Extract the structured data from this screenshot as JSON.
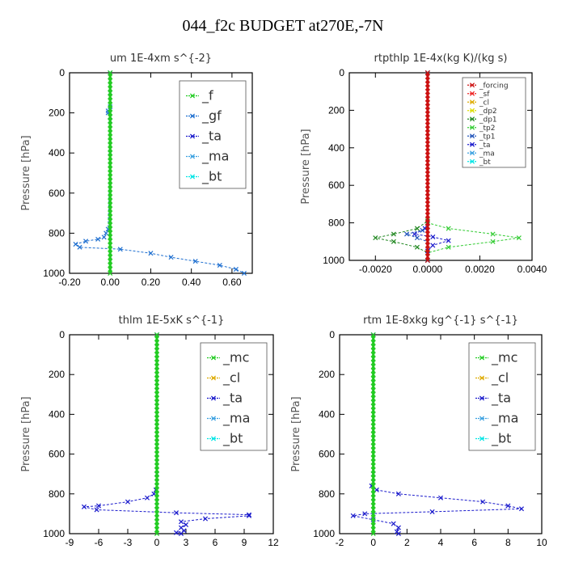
{
  "figure_title": "044_f2c  BUDGET at270E,-7N",
  "colors": {
    "f": "#22cc22",
    "gf": "#1e6fd0",
    "ta": "#1a1acc",
    "ma": "#3aa0e0",
    "bt": "#00e5e5",
    "forcing": "#cc1111",
    "sf": "#ee2222",
    "cl": "#ddaa00",
    "dp2": "#dddd00",
    "dp1": "#228822",
    "tp2": "#33cc33",
    "tp1": "#2255bb",
    "mc": "#22cc22",
    "total_overlay": "#22cc22"
  },
  "chart_data": [
    {
      "type": "line",
      "title": "um  1E-4xm s^{-2}",
      "ylabel": "Pressure [hPa]",
      "xlim": [
        -0.2,
        0.7
      ],
      "ylim": [
        1000,
        0
      ],
      "x_ticks": [
        "-0.20",
        "0.00",
        "0.20",
        "0.40",
        "0.60"
      ],
      "x_tick_values": [
        -0.2,
        0.0,
        0.2,
        0.4,
        0.6
      ],
      "y_ticks": [
        "0",
        "200",
        "400",
        "600",
        "800",
        "1000"
      ],
      "y_tick_values": [
        0,
        200,
        400,
        600,
        800,
        1000
      ],
      "legend": [
        "_f",
        "_gf",
        "_ta",
        "_ma",
        "_bt"
      ],
      "legend_size": "big",
      "legend_placement": "top-right",
      "series": [
        {
          "name": "_gf",
          "color_key": "gf",
          "x": [
            0.0,
            0.0,
            0.0,
            0.0,
            -0.01,
            -0.01,
            0.0,
            0.0,
            0.0,
            -0.01,
            -0.02,
            -0.03,
            -0.06,
            -0.12,
            -0.17,
            -0.15,
            0.05,
            0.2,
            0.3,
            0.42,
            0.54,
            0.62,
            0.66
          ],
          "y": [
            0,
            100,
            170,
            180,
            190,
            200,
            220,
            240,
            400,
            780,
            800,
            820,
            830,
            840,
            855,
            870,
            880,
            900,
            920,
            940,
            960,
            980,
            1000
          ]
        },
        {
          "name": "_f",
          "color_key": "f",
          "x": [
            0.0,
            0.0,
            0.0,
            0.0,
            0.0,
            0.0
          ],
          "y": [
            0,
            200,
            400,
            600,
            800,
            1000
          ]
        }
      ]
    },
    {
      "type": "line",
      "title": "rtpthlp  1E-4x(kg K)/(kg s)",
      "ylabel": "Pressure [hPa]",
      "xlim": [
        -0.003,
        0.004
      ],
      "ylim": [
        1000,
        0
      ],
      "x_ticks": [
        "-0.0020",
        "0.0000",
        "0.0020",
        "0.0040"
      ],
      "x_tick_values": [
        -0.002,
        0.0,
        0.002,
        0.004
      ],
      "y_ticks": [
        "0",
        "200",
        "400",
        "600",
        "800",
        "1000"
      ],
      "y_tick_values": [
        0,
        200,
        400,
        600,
        800,
        1000
      ],
      "legend": [
        "_forcing",
        "_sf",
        "_cl",
        "_dp2",
        "_dp1",
        "_tp2",
        "_tp1",
        "_ta",
        "_ma",
        "_bt"
      ],
      "legend_size": "small",
      "legend_placement": "top-right",
      "series": [
        {
          "name": "_tp2",
          "color_key": "tp2",
          "x": [
            0.0,
            0.0,
            0.0,
            0.0008,
            0.0025,
            0.0035,
            0.0025,
            0.0008,
            0.0,
            0.0
          ],
          "y": [
            0,
            780,
            800,
            830,
            860,
            880,
            900,
            930,
            960,
            1000
          ]
        },
        {
          "name": "_dp1",
          "color_key": "dp1",
          "x": [
            0.0,
            0.0,
            -0.0004,
            -0.0013,
            -0.002,
            -0.0013,
            -0.0004,
            0.0,
            0.0
          ],
          "y": [
            0,
            790,
            830,
            860,
            880,
            900,
            930,
            960,
            1000
          ]
        },
        {
          "name": "_ta",
          "color_key": "ta",
          "x": [
            0.0,
            0.0,
            -0.0001,
            -0.0005,
            0.0002,
            0.0008,
            0.0002,
            0.0,
            0.0
          ],
          "y": [
            0,
            800,
            830,
            860,
            875,
            895,
            920,
            950,
            1000
          ]
        },
        {
          "name": "_tp1",
          "color_key": "tp1",
          "x": [
            0.0,
            -0.0002,
            -0.0008,
            -0.0004,
            0.0,
            0.0
          ],
          "y": [
            820,
            840,
            860,
            880,
            900,
            1000
          ]
        },
        {
          "name": "_forcing",
          "color_key": "forcing",
          "x": [
            0.0,
            0.0,
            0.0,
            0.0,
            0.0,
            0.0
          ],
          "y": [
            0,
            200,
            400,
            600,
            800,
            1000
          ]
        }
      ]
    },
    {
      "type": "line",
      "title": "thlm  1E-5xK s^{-1}",
      "ylabel": "Pressure [hPa]",
      "xlim": [
        -9,
        12
      ],
      "ylim": [
        1000,
        0
      ],
      "x_ticks": [
        "-9",
        "-6",
        "-3",
        "0",
        "3",
        "6",
        "9",
        "12"
      ],
      "x_tick_values": [
        -9,
        -6,
        -3,
        0,
        3,
        6,
        9,
        12
      ],
      "y_ticks": [
        "0",
        "200",
        "400",
        "600",
        "800",
        "1000"
      ],
      "y_tick_values": [
        0,
        200,
        400,
        600,
        800,
        1000
      ],
      "legend": [
        "_mc",
        "_cl",
        "_ta",
        "_ma",
        "_bt"
      ],
      "legend_size": "big",
      "legend_placement": "top-right",
      "series": [
        {
          "name": "_ta",
          "color_key": "ta",
          "x": [
            0.0,
            0.0,
            -0.1,
            -0.3,
            -1.0,
            -3.0,
            -6.0,
            -7.5,
            -6.2,
            2.0,
            9.5,
            9.5,
            5.0,
            2.5,
            3.0,
            2.5,
            2.8,
            2.0,
            2.5
          ],
          "y": [
            0,
            700,
            780,
            800,
            820,
            840,
            860,
            865,
            880,
            895,
            905,
            910,
            925,
            940,
            955,
            970,
            985,
            995,
            1000
          ]
        },
        {
          "name": "_mc",
          "color_key": "mc",
          "x": [
            0.0,
            0.0,
            0.0,
            0.0,
            0.0,
            0.0
          ],
          "y": [
            0,
            200,
            400,
            600,
            800,
            1000
          ]
        }
      ]
    },
    {
      "type": "line",
      "title": "rtm  1E-8xkg kg^{-1} s^{-1}",
      "ylabel": "Pressure [hPa]",
      "xlim": [
        -2,
        10
      ],
      "ylim": [
        1000,
        0
      ],
      "x_ticks": [
        "-2",
        "0",
        "2",
        "4",
        "6",
        "8",
        "10"
      ],
      "x_tick_values": [
        -2,
        0,
        2,
        4,
        6,
        8,
        10
      ],
      "y_ticks": [
        "0",
        "200",
        "400",
        "600",
        "800",
        "1000"
      ],
      "y_tick_values": [
        0,
        200,
        400,
        600,
        800,
        1000
      ],
      "legend": [
        "_mc",
        "_cl",
        "_ta",
        "_ma",
        "_bt"
      ],
      "legend_size": "big",
      "legend_placement": "top-right",
      "series": [
        {
          "name": "_ta",
          "color_key": "ta",
          "x": [
            0.0,
            0.0,
            0.0,
            -0.1,
            0.2,
            1.5,
            4.0,
            6.5,
            8.0,
            8.8,
            3.5,
            -0.5,
            -1.2,
            0.0,
            1.2,
            1.5,
            1.4,
            1.5
          ],
          "y": [
            0,
            700,
            740,
            760,
            780,
            800,
            820,
            840,
            860,
            875,
            890,
            900,
            910,
            930,
            950,
            970,
            990,
            1000
          ]
        },
        {
          "name": "_mc",
          "color_key": "mc",
          "x": [
            0.0,
            0.0,
            0.0,
            0.0,
            0.0,
            0.0
          ],
          "y": [
            0,
            200,
            400,
            600,
            800,
            1000
          ]
        }
      ]
    }
  ]
}
